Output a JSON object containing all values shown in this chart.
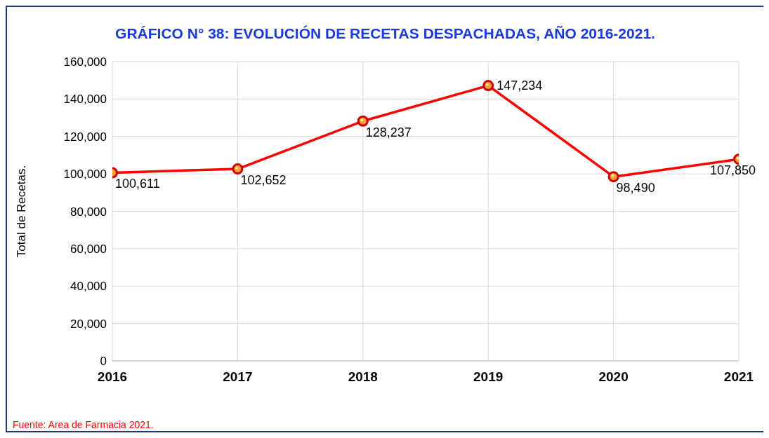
{
  "chart_data": {
    "type": "line",
    "title": "GRÁFICO N° 38: EVOLUCIÓN DE RECETAS DESPACHADAS, AÑO 2016-2021.",
    "ylabel": "Total de Recetas.",
    "categories": [
      "2016",
      "2017",
      "2018",
      "2019",
      "2020",
      "2021"
    ],
    "series": [
      {
        "color": "#ff0000",
        "values": [
          100611,
          102652,
          128237,
          147234,
          98490,
          107850
        ],
        "value_labels": [
          "100,611",
          "102,652",
          "128,237",
          "147,234",
          "98,490",
          "107,850"
        ]
      }
    ],
    "ylim": [
      0,
      160000
    ],
    "yticks": [
      0,
      {
        "value": 20000,
        "label": "20,000"
      },
      {
        "value": 40000,
        "label": "40,000"
      },
      {
        "value": 60000,
        "label": "60,000"
      },
      {
        "value": 80000,
        "label": "80,000"
      },
      {
        "value": 100000,
        "label": "100,000"
      },
      {
        "value": 120000,
        "label": "120,000"
      },
      {
        "value": 140000,
        "label": "140,000"
      },
      {
        "value": 160000,
        "label": "160,000"
      }
    ],
    "grid": true,
    "marker": "circle",
    "line_style": "solid",
    "legend": false,
    "annotations": [
      "Fuente: Area de Farmacia 2021."
    ]
  }
}
